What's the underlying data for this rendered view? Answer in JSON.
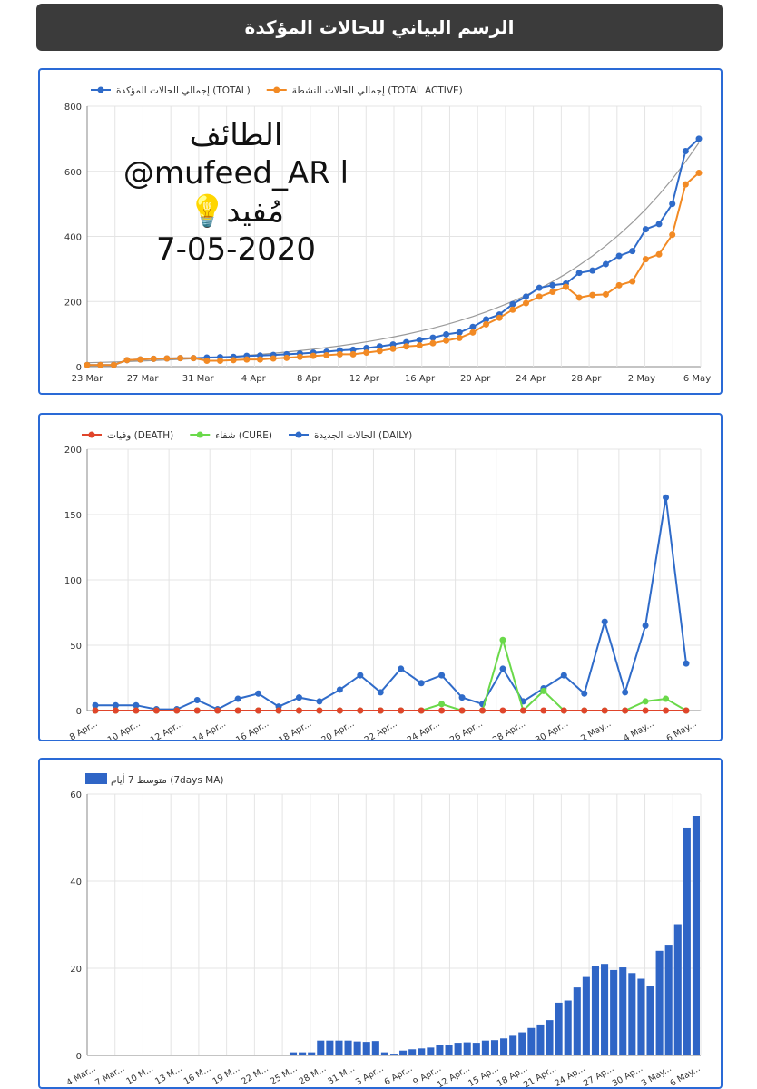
{
  "header": {
    "title": "الرسم البياني للحالات المؤكدة"
  },
  "watermark": {
    "line1": "الطائف",
    "line2": "@mufeed_AR l 💡مُفيد",
    "line3": "7-05-2020"
  },
  "colors": {
    "blue": "#2f6bc9",
    "orange": "#f28a24",
    "red": "#e0452b",
    "green": "#6ad94a",
    "bar": "#2f65c6",
    "grid": "#e4e4e4",
    "trend": "#9a9a9a"
  },
  "chart_data": [
    {
      "type": "line",
      "ylim": [
        0,
        800
      ],
      "yticks": [
        "0",
        "200",
        "400",
        "600",
        "800"
      ],
      "xticks": [
        "23 Mar",
        "27 Mar",
        "31 Mar",
        "4 Apr",
        "8 Apr",
        "12 Apr",
        "16 Apr",
        "20 Apr",
        "24 Apr",
        "28 Apr",
        "2 May",
        "6 May"
      ],
      "legend": [
        {
          "key": "total",
          "label": "إجمالي الحالات المؤكدة (TOTAL)"
        },
        {
          "key": "active",
          "label": "إجمالي الحالات النشطة (TOTAL ACTIVE)"
        }
      ],
      "series": [
        {
          "key": "total",
          "values": [
            5,
            5,
            5,
            20,
            22,
            24,
            25,
            26,
            26,
            28,
            29,
            30,
            33,
            34,
            36,
            38,
            40,
            43,
            46,
            50,
            52,
            57,
            62,
            68,
            75,
            82,
            89,
            99,
            105,
            122,
            145,
            160,
            192,
            215,
            242,
            250,
            255,
            288,
            295,
            315,
            340,
            355,
            422,
            438,
            500,
            662,
            700
          ]
        },
        {
          "key": "active",
          "values": [
            5,
            5,
            5,
            20,
            22,
            24,
            25,
            26,
            26,
            18,
            18,
            20,
            22,
            22,
            25,
            27,
            30,
            33,
            35,
            38,
            38,
            43,
            48,
            55,
            62,
            65,
            72,
            80,
            88,
            105,
            130,
            150,
            175,
            195,
            215,
            230,
            245,
            212,
            220,
            222,
            250,
            262,
            330,
            345,
            405,
            560,
            595
          ]
        }
      ]
    },
    {
      "type": "line",
      "ylim": [
        0,
        200
      ],
      "yticks": [
        "0",
        "50",
        "100",
        "150",
        "200"
      ],
      "xticks": [
        "8 Apr...",
        "10 Apr...",
        "12 Apr...",
        "14 Apr...",
        "16 Apr...",
        "18 Apr...",
        "20 Apr...",
        "22 Apr...",
        "24 Apr...",
        "26 Apr...",
        "28 Apr...",
        "30 Apr...",
        "2 May...",
        "4 May...",
        "6 May..."
      ],
      "legend": [
        {
          "key": "death",
          "label": "وفيات (DEATH)"
        },
        {
          "key": "cure",
          "label": "شفاء (CURE)"
        },
        {
          "key": "daily",
          "label": "الحالات الجديدة (DAILY)"
        }
      ],
      "series": [
        {
          "key": "daily",
          "values": [
            4,
            4,
            4,
            1,
            1,
            8,
            1,
            9,
            13,
            3,
            10,
            7,
            16,
            27,
            14,
            32,
            21,
            27,
            10,
            5,
            32,
            7,
            17,
            27,
            13,
            68,
            14,
            65,
            163,
            36
          ]
        },
        {
          "key": "cure",
          "values": [
            0,
            0,
            0,
            0,
            0,
            0,
            0,
            0,
            0,
            0,
            0,
            0,
            0,
            0,
            0,
            0,
            0,
            5,
            0,
            0,
            54,
            0,
            15,
            0,
            0,
            0,
            0,
            7,
            9,
            0
          ]
        },
        {
          "key": "death",
          "values": [
            0,
            0,
            0,
            0,
            0,
            0,
            0,
            0,
            0,
            0,
            0,
            0,
            0,
            0,
            0,
            0,
            0,
            0,
            0,
            0,
            0,
            0,
            0,
            0,
            0,
            0,
            0,
            0,
            0,
            0
          ]
        }
      ]
    },
    {
      "type": "bar",
      "ylim": [
        0,
        60
      ],
      "yticks": [
        "0",
        "20",
        "40",
        "60"
      ],
      "xticks": [
        "4 Mar...",
        "7 Mar...",
        "10 M...",
        "13 M...",
        "16 M...",
        "19 M...",
        "22 M...",
        "25 M...",
        "28 M...",
        "31 M...",
        "3 Apr...",
        "6 Apr...",
        "9 Apr...",
        "12 Apr...",
        "15 Ap...",
        "18 Ap...",
        "21 Apr...",
        "24 Ap...",
        "27 Ap...",
        "30 Ap...",
        "3 May...",
        "6 May..."
      ],
      "legend": [
        {
          "key": "ma",
          "label": "متوسط 7 أيام (7days MA)"
        }
      ],
      "series": [
        {
          "key": "ma",
          "values": [
            0,
            0,
            0,
            0,
            0,
            0,
            0,
            0,
            0,
            0,
            0,
            0,
            0,
            0,
            0,
            0,
            0,
            0,
            0,
            0,
            0,
            0,
            0.7,
            0.7,
            0.7,
            3.4,
            3.4,
            3.4,
            3.4,
            3.2,
            3.1,
            3.3,
            0.7,
            0.4,
            1.1,
            1.4,
            1.6,
            1.8,
            2.3,
            2.4,
            2.9,
            3.0,
            2.9,
            3.4,
            3.5,
            3.9,
            4.5,
            5.3,
            6.3,
            7.1,
            8.1,
            12.1,
            12.6,
            15.6,
            18.0,
            20.6,
            21.0,
            19.6,
            20.2,
            18.9,
            17.6,
            15.9,
            24.0,
            25.4,
            30.1,
            52.3,
            55.0
          ]
        }
      ]
    }
  ]
}
